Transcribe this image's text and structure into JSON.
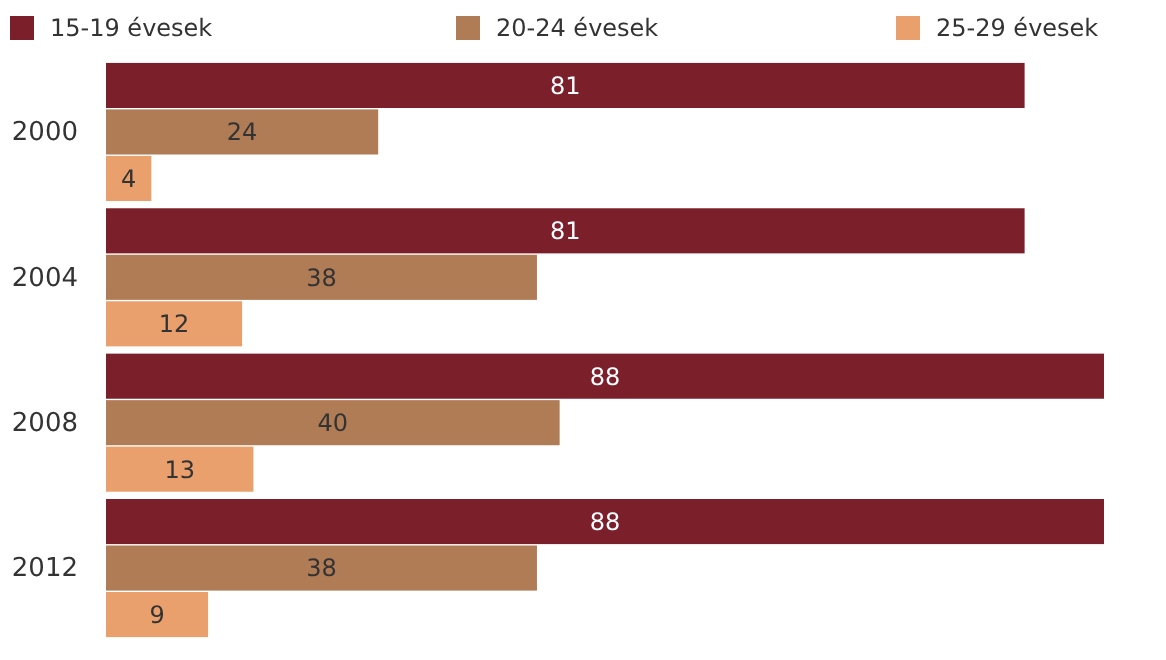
{
  "chart_data": {
    "type": "bar",
    "orientation": "horizontal",
    "categories": [
      "2000",
      "2004",
      "2008",
      "2012"
    ],
    "series": [
      {
        "name": "15-19 évesek",
        "color": "#7b1f2b",
        "values": [
          81,
          81,
          88,
          88
        ]
      },
      {
        "name": "20-24 évesek",
        "color": "#b07c56",
        "values": [
          24,
          38,
          40,
          38
        ]
      },
      {
        "name": "25-29 évesek",
        "color": "#e9a06c",
        "values": [
          4,
          12,
          13,
          9
        ]
      }
    ],
    "xlim": [
      0,
      88
    ],
    "tick_labels": "y",
    "data_labels": true,
    "legend": "top"
  }
}
